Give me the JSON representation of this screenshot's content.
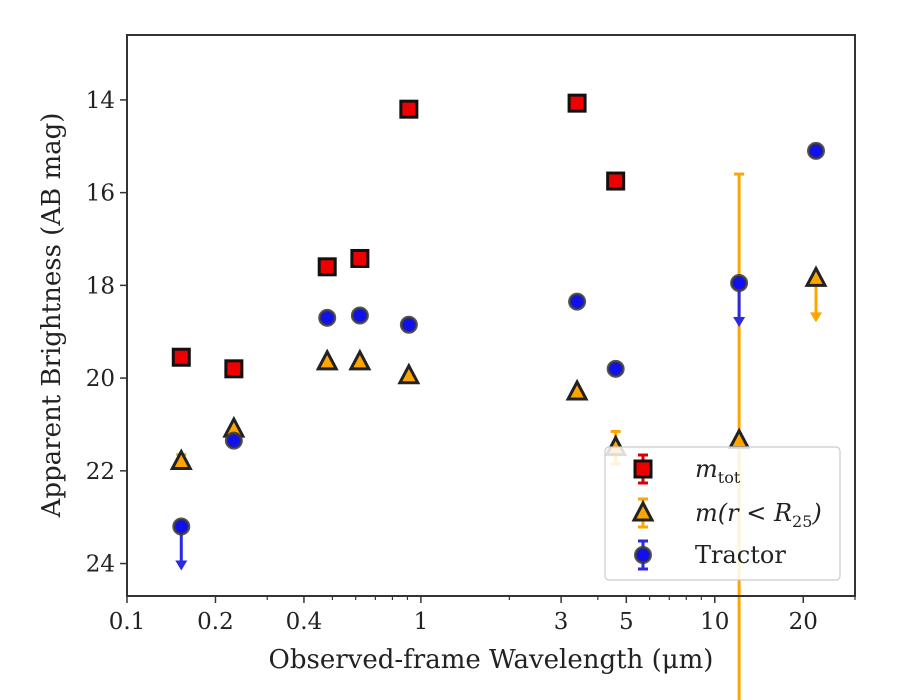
{
  "chart_data": {
    "type": "scatter",
    "xlabel": "Observed-frame Wavelength (μm)",
    "ylabel": "Apparent Brightness (AB mag)",
    "x_scale": "log",
    "xlim": [
      0.1,
      30
    ],
    "ylim": [
      24.7,
      12.6
    ],
    "y_inverted": true,
    "x_ticks": [
      {
        "value": 0.1,
        "label": "0.1"
      },
      {
        "value": 0.2,
        "label": "0.2"
      },
      {
        "value": 0.4,
        "label": "0.4"
      },
      {
        "value": 1,
        "label": "1"
      },
      {
        "value": 3,
        "label": "3"
      },
      {
        "value": 5,
        "label": "5"
      },
      {
        "value": 10,
        "label": "10"
      },
      {
        "value": 20,
        "label": "20"
      }
    ],
    "y_ticks": [
      {
        "value": 14,
        "label": "14"
      },
      {
        "value": 16,
        "label": "16"
      },
      {
        "value": 18,
        "label": "18"
      },
      {
        "value": 20,
        "label": "20"
      },
      {
        "value": 22,
        "label": "22"
      },
      {
        "value": 24,
        "label": "24"
      }
    ],
    "grid": false,
    "legend_position": "lower-right",
    "series": [
      {
        "legend_main": "m",
        "legend_sub": "tot",
        "legend_paren": "",
        "marker": "square",
        "color": "#ee0000",
        "edge": "#111111",
        "errcolor": "#dd0000",
        "points": [
          {
            "x": 0.153,
            "y": 19.55
          },
          {
            "x": 0.231,
            "y": 19.8
          },
          {
            "x": 0.48,
            "y": 17.6
          },
          {
            "x": 0.62,
            "y": 17.42
          },
          {
            "x": 0.91,
            "y": 14.2
          },
          {
            "x": 3.4,
            "y": 14.07
          },
          {
            "x": 4.6,
            "y": 15.75
          }
        ]
      },
      {
        "legend_main": "m",
        "legend_sub": "25",
        "legend_paren": "(r < R",
        "marker": "triangle",
        "color": "#ffa500",
        "edge": "#222222",
        "errcolor": "#ffa500",
        "points": [
          {
            "x": 0.153,
            "y": 21.8,
            "err": 0.15
          },
          {
            "x": 0.231,
            "y": 21.1
          },
          {
            "x": 0.48,
            "y": 19.65
          },
          {
            "x": 0.62,
            "y": 19.65
          },
          {
            "x": 0.91,
            "y": 19.95
          },
          {
            "x": 3.4,
            "y": 20.3
          },
          {
            "x": 4.6,
            "y": 21.5,
            "err": 0.35
          },
          {
            "x": 12.1,
            "y": 21.35,
            "err": 5.75
          },
          {
            "x": 22.1,
            "y": 17.85,
            "upper_limit": true
          }
        ]
      },
      {
        "legend_main": "Tractor",
        "legend_sub": "",
        "legend_paren": "",
        "marker": "circle",
        "color": "#1010ee",
        "edge": "#3a3a3a",
        "errcolor": "#2a2ae0",
        "points": [
          {
            "x": 0.153,
            "y": 23.2,
            "upper_limit": true
          },
          {
            "x": 0.231,
            "y": 21.35
          },
          {
            "x": 0.48,
            "y": 18.7
          },
          {
            "x": 0.62,
            "y": 18.65
          },
          {
            "x": 0.91,
            "y": 18.85
          },
          {
            "x": 3.4,
            "y": 18.35
          },
          {
            "x": 4.6,
            "y": 19.8
          },
          {
            "x": 12.1,
            "y": 17.95,
            "upper_limit": true
          },
          {
            "x": 22.1,
            "y": 15.1
          }
        ]
      }
    ]
  }
}
